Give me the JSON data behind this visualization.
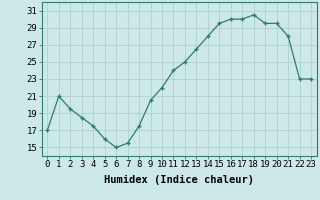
{
  "x": [
    0,
    1,
    2,
    3,
    4,
    5,
    6,
    7,
    8,
    9,
    10,
    11,
    12,
    13,
    14,
    15,
    16,
    17,
    18,
    19,
    20,
    21,
    22,
    23
  ],
  "y": [
    17,
    21,
    19.5,
    18.5,
    17.5,
    16,
    15,
    15.5,
    17.5,
    20.5,
    22,
    24,
    25,
    26.5,
    28,
    29.5,
    30,
    30,
    30.5,
    29.5,
    29.5,
    28,
    23,
    23
  ],
  "line_color": "#2e7d6e",
  "marker_color": "#2e7d6e",
  "bg_color": "#cce8e8",
  "grid_color": "#b0d0d0",
  "xlabel": "Humidex (Indice chaleur)",
  "ylim": [
    14,
    32
  ],
  "yticks": [
    15,
    17,
    19,
    21,
    23,
    25,
    27,
    29,
    31
  ],
  "xlim": [
    -0.5,
    23.5
  ],
  "xticks": [
    0,
    1,
    2,
    3,
    4,
    5,
    6,
    7,
    8,
    9,
    10,
    11,
    12,
    13,
    14,
    15,
    16,
    17,
    18,
    19,
    20,
    21,
    22,
    23
  ],
  "xlabel_fontsize": 7.5,
  "tick_fontsize": 6.5
}
